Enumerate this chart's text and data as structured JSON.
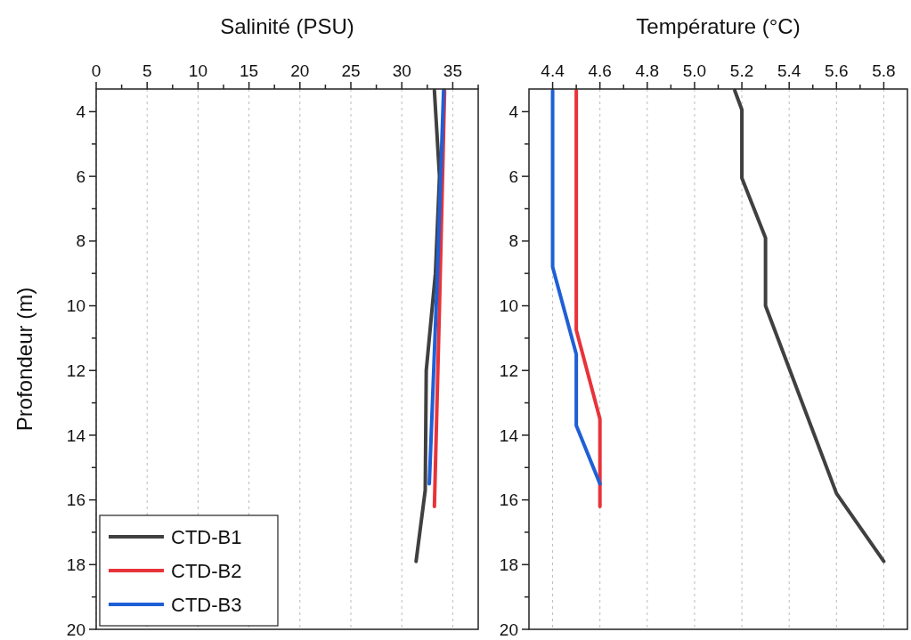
{
  "chart_data": [
    {
      "type": "line",
      "xlabel": "Salinité (PSU)",
      "ylabel": "Profondeur (m)",
      "xlim": [
        0,
        37.5
      ],
      "xticks": [
        0,
        {
          "value": 2.5,
          "label": null
        },
        5,
        {
          "value": 7.5,
          "label": null
        },
        10,
        {
          "value": 12.5,
          "label": null
        },
        15,
        {
          "value": 17.5,
          "label": null
        },
        20,
        {
          "value": 22.5,
          "label": null
        },
        25,
        {
          "value": 27.5,
          "label": null
        },
        30,
        {
          "value": 32.5,
          "label": null
        },
        35,
        {
          "value": 37.5,
          "label": null
        }
      ],
      "ylim": [
        20,
        3.3
      ],
      "yticks": [
        4,
        {
          "value": 5,
          "label": null
        },
        6,
        {
          "value": 7,
          "label": null
        },
        8,
        {
          "value": 9,
          "label": null
        },
        10,
        {
          "value": 11,
          "label": null
        },
        12,
        {
          "value": 13,
          "label": null
        },
        14,
        {
          "value": 15,
          "label": null
        },
        16,
        {
          "value": 17,
          "label": null
        },
        18,
        {
          "value": 19,
          "label": null
        },
        20
      ],
      "grid": "x",
      "legend": "bottom left",
      "line_style": "solid",
      "marker": "none",
      "series": [
        {
          "name": "CTD-B1",
          "color": "#404040",
          "x": [
            33.2,
            33.7,
            33.3,
            32.4,
            32.3,
            31.4
          ],
          "values": [
            3.35,
            6,
            9,
            12,
            15.7,
            17.9
          ]
        },
        {
          "name": "CTD-B2",
          "color": "#e8333a",
          "x": [
            34.2,
            33.7,
            33.2
          ],
          "values": [
            3.35,
            10,
            16.2
          ]
        },
        {
          "name": "CTD-B3",
          "color": "#1f5fd6",
          "x": [
            34.1,
            33.5,
            32.7
          ],
          "values": [
            3.35,
            9,
            15.5
          ]
        }
      ]
    },
    {
      "type": "line",
      "xlabel": "Température (°C)",
      "xlim": [
        4.3,
        5.9
      ],
      "xticks": [
        4.4,
        {
          "value": 4.5,
          "label": null
        },
        4.6,
        {
          "value": 4.7,
          "label": null
        },
        4.8,
        {
          "value": 4.9,
          "label": null
        },
        {
          "value": 5,
          "label": "5.0"
        },
        {
          "value": 5.1,
          "label": null
        },
        5.2,
        {
          "value": 5.3,
          "label": null
        },
        5.4,
        {
          "value": 5.5,
          "label": null
        },
        5.6,
        {
          "value": 5.7,
          "label": null
        },
        5.8
      ],
      "ylim": [
        20,
        3.3
      ],
      "yticks": [
        4,
        {
          "value": 5,
          "label": null
        },
        6,
        {
          "value": 7,
          "label": null
        },
        8,
        {
          "value": 9,
          "label": null
        },
        10,
        {
          "value": 11,
          "label": null
        },
        12,
        {
          "value": 13,
          "label": null
        },
        14,
        {
          "value": 15,
          "label": null
        },
        16,
        {
          "value": 17,
          "label": null
        },
        18,
        {
          "value": 19,
          "label": null
        },
        20
      ],
      "grid": "x",
      "line_style": "solid",
      "marker": "none",
      "series": [
        {
          "color": "#404040",
          "x": [
            5.17,
            5.2,
            5.2,
            5.3,
            5.3,
            5.6,
            5.8
          ],
          "values": [
            3.35,
            3.94,
            6.05,
            7.9,
            10,
            15.8,
            17.9
          ]
        },
        {
          "color": "#e8333a",
          "x": [
            4.5,
            4.5,
            4.6,
            4.6
          ],
          "values": [
            3.35,
            10.75,
            13.5,
            16.2
          ]
        },
        {
          "color": "#1f5fd6",
          "x": [
            4.4,
            4.4,
            4.5,
            4.5,
            4.6
          ],
          "values": [
            3.35,
            8.8,
            11.5,
            13.7,
            15.5
          ]
        }
      ]
    }
  ]
}
